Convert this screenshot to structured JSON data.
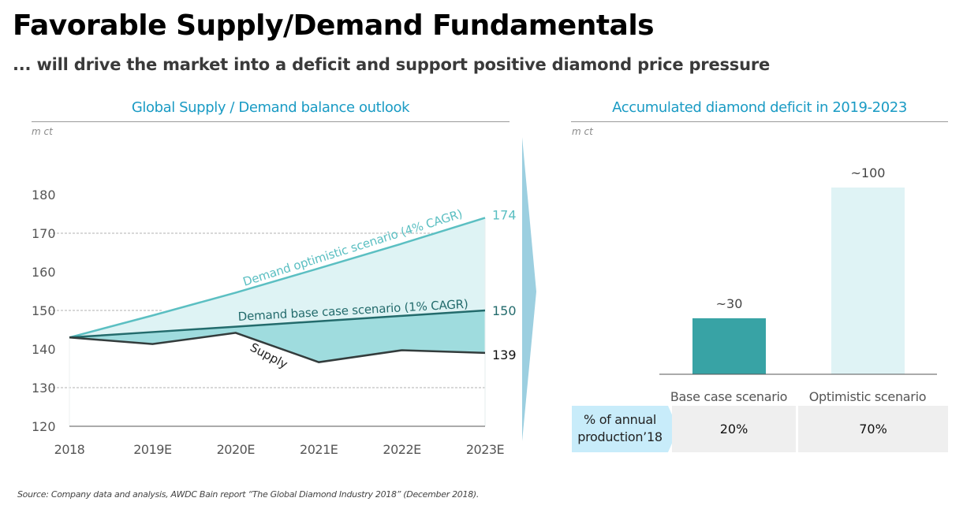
{
  "header": {
    "title": "Favorable Supply/Demand Fundamentals",
    "subtitle": "... will drive the market into a deficit and support positive diamond price pressure"
  },
  "colors": {
    "panel_title": "#1a9bc4",
    "optimistic_line": "#5bbfc2",
    "optimistic_fill": "#def3f4",
    "base_line": "#236b6c",
    "base_fill": "#9fdcde",
    "supply_line": "#333c3c",
    "base_bar": "#38a3a5",
    "optimistic_bar": "#dff3f5",
    "divider_arrow": "#9ccfe0",
    "row_head_bg": "#c8ecfa",
    "cell_bg": "#efefef"
  },
  "chart_data": [
    {
      "type": "line",
      "title": "Global Supply / Demand balance outlook",
      "unit_label": "m ct",
      "xlabel": "",
      "ylabel": "m ct",
      "x": [
        "2018",
        "2019E",
        "2020E",
        "2021E",
        "2022E",
        "2023E"
      ],
      "ylim": [
        120,
        180
      ],
      "yticks": [
        120,
        130,
        140,
        150,
        160,
        170,
        180
      ],
      "grid": "dashed at 130, 150, 170",
      "series": [
        {
          "name": "Demand optimistic scenario (4% CAGR)",
          "values": [
            143,
            148.7,
            154.6,
            160.9,
            167.3,
            174
          ],
          "end_label": "174"
        },
        {
          "name": "Demand base case scenario (1% CAGR)",
          "values": [
            143,
            144.4,
            145.8,
            147.2,
            148.6,
            150
          ],
          "end_label": "150"
        },
        {
          "name": "Supply",
          "values": [
            143,
            141.3,
            144.2,
            136.6,
            139.7,
            139
          ],
          "end_label": "139"
        }
      ],
      "series_labels": {
        "optimistic": "Demand optimistic scenario (4% CAGR)",
        "base": "Demand base case scenario (1% CAGR)",
        "supply": "Supply"
      }
    },
    {
      "type": "bar",
      "title": "Accumulated diamond deficit in 2019-2023",
      "unit_label": "m ct",
      "categories": [
        "Base case scenario",
        "Optimistic scenario"
      ],
      "values": [
        30,
        100
      ],
      "data_labels": [
        "~30",
        "~100"
      ],
      "ylim": [
        0,
        100
      ]
    }
  ],
  "table": {
    "row_header": "% of annual production’18",
    "row_header_lines": [
      "% of annual",
      "production’18"
    ],
    "cells": [
      "20%",
      "70%"
    ]
  },
  "source": "Source: Company data and analysis, AWDC Bain report “The Global Diamond Industry 2018” (December 2018)."
}
